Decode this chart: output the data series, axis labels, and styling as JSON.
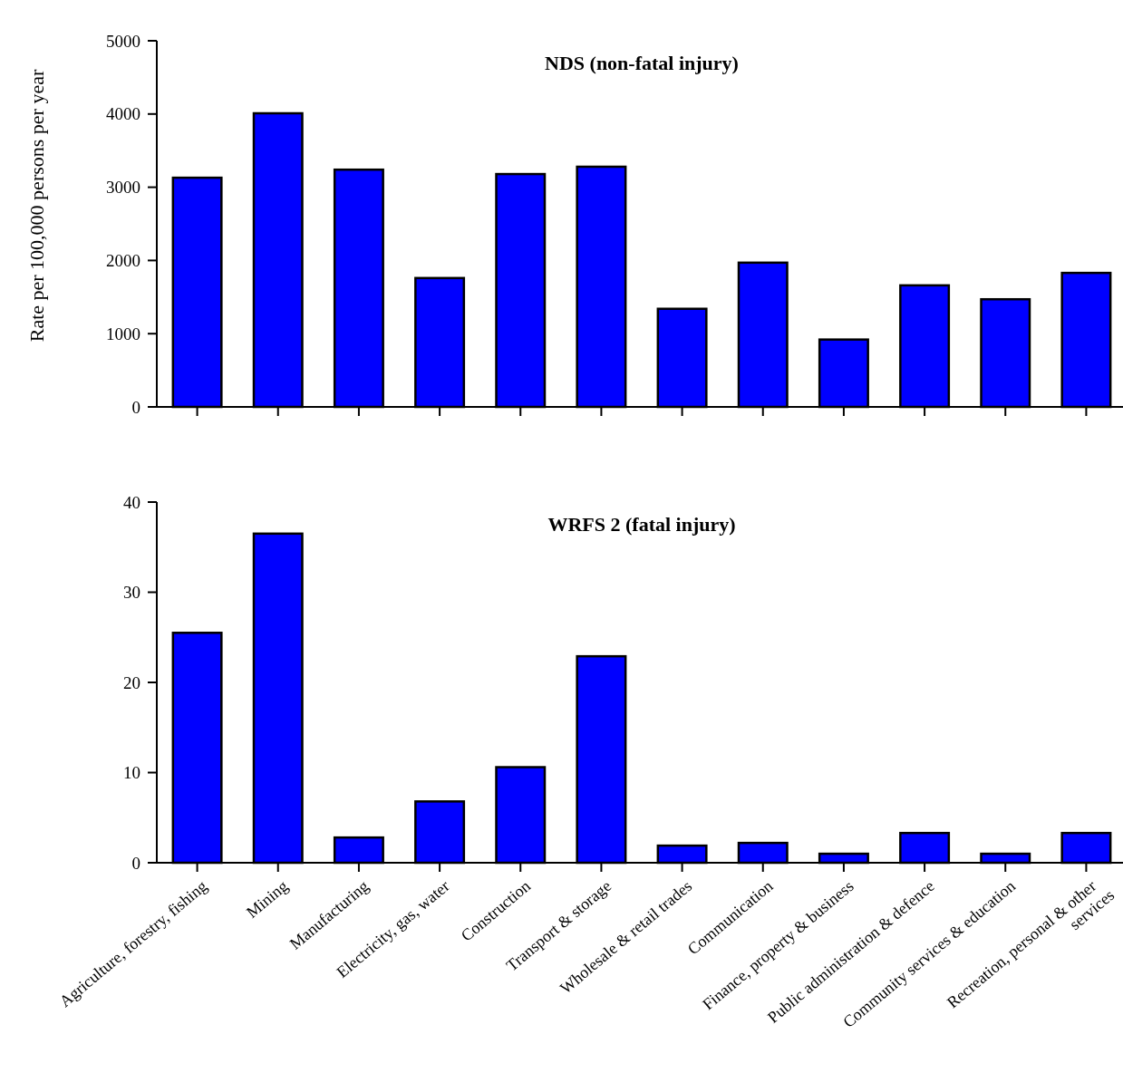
{
  "chart_data": [
    {
      "type": "bar",
      "title": "NDS (non-fatal injury)",
      "ylabel": "Rate per 100,000 persons per year",
      "categories": [
        null,
        null,
        null,
        null,
        null,
        null,
        null,
        null,
        null,
        null,
        null,
        null
      ],
      "values": [
        3130,
        4010,
        3240,
        1760,
        3180,
        3280,
        1340,
        1970,
        920,
        1660,
        1470,
        1830
      ],
      "color": "#0000ff",
      "ylim": [
        0,
        5000
      ],
      "yticks": [
        0,
        1000,
        2000,
        3000,
        4000,
        5000
      ],
      "tick_labels": "y",
      "grid": false
    },
    {
      "type": "bar",
      "title": "WRFS 2 (fatal injury)",
      "categories": [
        "Agriculture, forestry, fishing",
        "Mining",
        "Manufacturing",
        "Electricity, gas, water",
        "Construction",
        "Transport & storage",
        "Wholesale & retail trades",
        "Communication",
        "Finance, property & business",
        "Public administration & defence",
        "Community services & education",
        "Recreation, personal & other services"
      ],
      "values": [
        25.5,
        36.5,
        2.8,
        6.8,
        10.6,
        22.9,
        1.9,
        2.2,
        1.0,
        3.3,
        1.0,
        3.3
      ],
      "color": "#0000ff",
      "ylim": [
        0,
        40
      ],
      "yticks": [
        0,
        10,
        20,
        30,
        40
      ],
      "grid": false
    }
  ]
}
